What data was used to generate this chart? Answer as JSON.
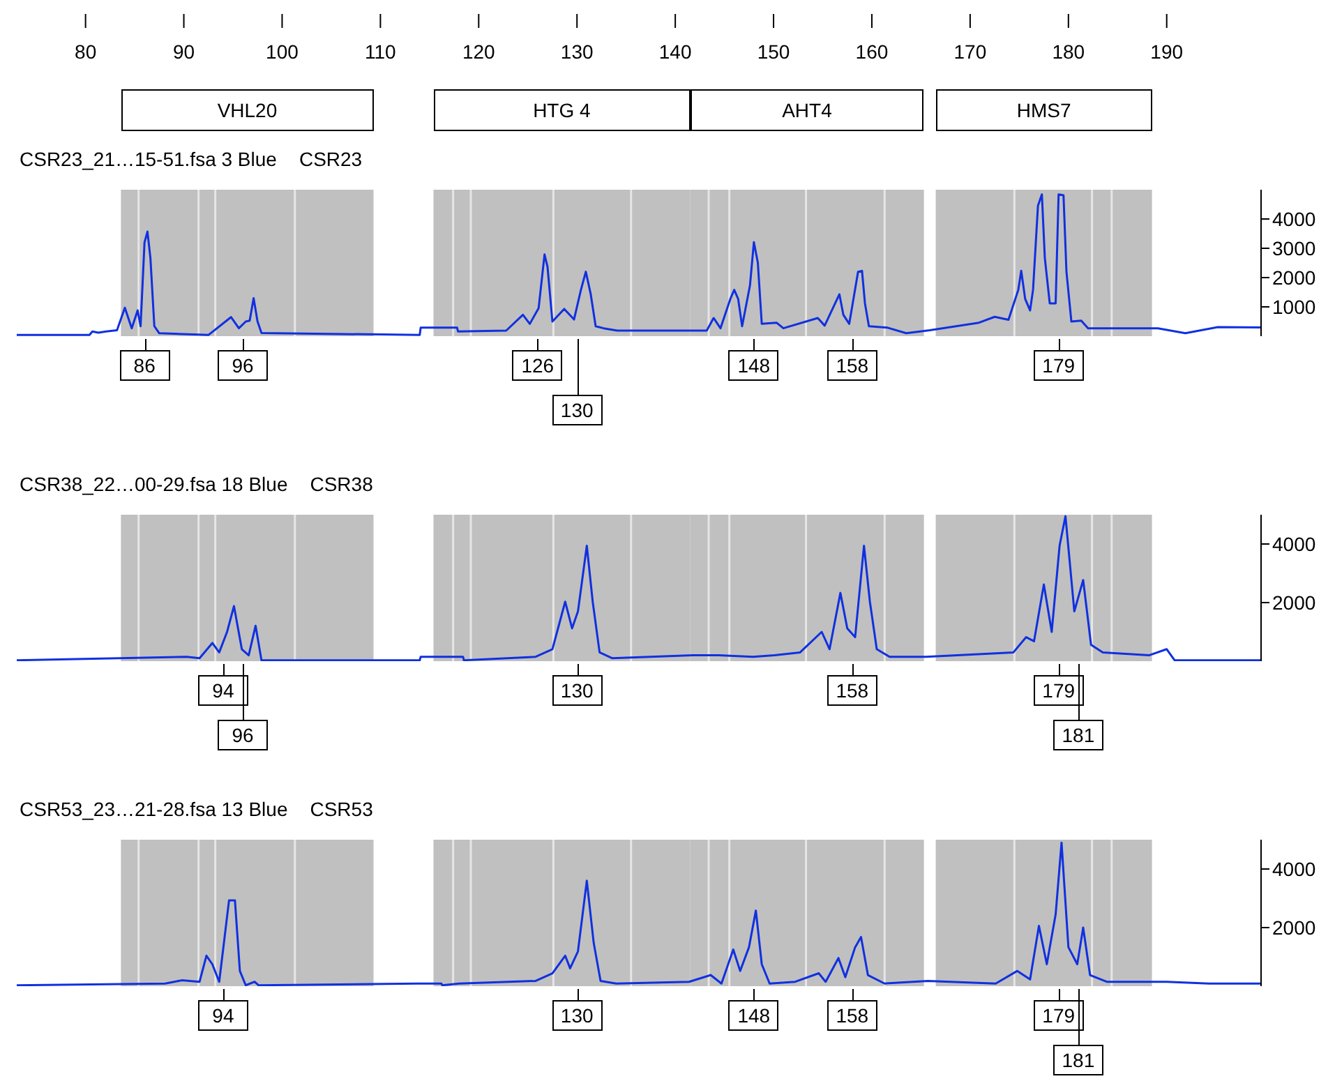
{
  "chart_data": [
    {
      "type": "line",
      "title": "CSR23_21…15-51.fsa 3 Blue",
      "subtitle": "CSR23",
      "xlim": [
        73,
        199.6
      ],
      "xticks": [
        80,
        90,
        100,
        110,
        120,
        130,
        140,
        150,
        160,
        170,
        180,
        190
      ],
      "y2lim": [
        0,
        5000
      ],
      "y2ticks": [
        1000,
        2000,
        3000,
        4000
      ],
      "series": [
        {
          "color": "#1030e0",
          "axis": "y2",
          "x": [
            73,
            80.4,
            80.7,
            81.3,
            82.1,
            83.2,
            84.0,
            84.7,
            85.3,
            85.6,
            86.0,
            86.3,
            86.6,
            87.0,
            87.5,
            92.5,
            94.8,
            95.6,
            96.3,
            96.7,
            97.1,
            97.5,
            97.9,
            114.0,
            114.1,
            117.8,
            117.9,
            122.8,
            124.5,
            125.2,
            126.1,
            126.7,
            127.0,
            127.5,
            128.7,
            129.7,
            130.4,
            130.9,
            131.4,
            131.9,
            132.7,
            134.1,
            143.2,
            143.9,
            144.6,
            145.6,
            146.0,
            146.4,
            146.8,
            147.6,
            148.0,
            148.4,
            148.8,
            150.3,
            151.0,
            154.5,
            155.2,
            156.7,
            157.1,
            157.7,
            158.6,
            159.0,
            159.3,
            159.7,
            161.6,
            163.5,
            165.9,
            170.9,
            172.5,
            173.9,
            174.9,
            175.2,
            175.6,
            176.1,
            176.4,
            176.9,
            177.3,
            177.6,
            178.1,
            178.7,
            179.0,
            179.5,
            179.8,
            180.3,
            181.3,
            182.0,
            189.1,
            191.9,
            195.2,
            199.6
          ],
          "values": [
            40,
            40,
            160,
            120,
            160,
            200,
            970,
            270,
            880,
            340,
            3200,
            3570,
            2670,
            340,
            100,
            40,
            650,
            270,
            500,
            530,
            1300,
            500,
            110,
            40,
            290,
            290,
            160,
            190,
            730,
            420,
            960,
            2790,
            2370,
            500,
            930,
            570,
            1580,
            2200,
            1430,
            340,
            270,
            190,
            190,
            620,
            270,
            1270,
            1580,
            1270,
            340,
            1730,
            3210,
            2510,
            420,
            460,
            270,
            620,
            360,
            1430,
            730,
            420,
            2200,
            2230,
            1120,
            340,
            290,
            100,
            200,
            460,
            660,
            560,
            1580,
            2230,
            1270,
            880,
            1580,
            4450,
            4840,
            2670,
            1120,
            1120,
            4840,
            4810,
            2200,
            500,
            530,
            270,
            270,
            100,
            310,
            300
          ]
        }
      ],
      "bands": [
        {
          "axis": "x",
          "from": 83.6,
          "to": 109.3,
          "color": "#c0c0c0"
        },
        {
          "axis": "x",
          "from": 115.4,
          "to": 141.5,
          "color": "#c0c0c0"
        },
        {
          "axis": "x",
          "from": 141.5,
          "to": 165.3,
          "color": "#c0c0c0"
        },
        {
          "axis": "x",
          "from": 166.5,
          "to": 188.5,
          "color": "#c0c0c0"
        }
      ],
      "ref_lines": [
        {
          "axis": "x",
          "value": 85.4,
          "color": "#e6e6e6"
        },
        {
          "axis": "x",
          "value": 91.5,
          "color": "#e6e6e6"
        },
        {
          "axis": "x",
          "value": 93.2,
          "color": "#e6e6e6"
        },
        {
          "axis": "x",
          "value": 101.3,
          "color": "#e6e6e6"
        },
        {
          "axis": "x",
          "value": 117.4,
          "color": "#e6e6e6"
        },
        {
          "axis": "x",
          "value": 119.2,
          "color": "#e6e6e6"
        },
        {
          "axis": "x",
          "value": 127.6,
          "color": "#e6e6e6"
        },
        {
          "axis": "x",
          "value": 135.5,
          "color": "#e6e6e6"
        },
        {
          "axis": "x",
          "value": 143.4,
          "color": "#e6e6e6"
        },
        {
          "axis": "x",
          "value": 145.5,
          "color": "#e6e6e6"
        },
        {
          "axis": "x",
          "value": 153.3,
          "color": "#e6e6e6"
        },
        {
          "axis": "x",
          "value": 161.3,
          "color": "#e6e6e6"
        },
        {
          "axis": "x",
          "value": 174.5,
          "color": "#e6e6e6"
        },
        {
          "axis": "x",
          "value": 182.4,
          "color": "#e6e6e6"
        },
        {
          "axis": "x",
          "value": 184.4,
          "color": "#e6e6e6"
        }
      ],
      "annotations": [
        "VHL20",
        "HTG 4",
        "AHT4",
        "HMS7",
        "86",
        "96",
        "126",
        "130",
        "148",
        "158",
        "179"
      ]
    },
    {
      "type": "line",
      "title": "CSR38_22…00-29.fsa 18 Blue",
      "subtitle": "CSR38",
      "xlim": [
        73,
        199.6
      ],
      "y2lim": [
        0,
        5000
      ],
      "y2ticks": [
        2000,
        4000
      ],
      "tick_labels": "y2",
      "series": [
        {
          "color": "#1030e0",
          "axis": "y2",
          "x": [
            73,
            90.3,
            91.6,
            92.9,
            93.6,
            94.4,
            95.1,
            95.9,
            96.6,
            97.3,
            97.9,
            114.0,
            114.1,
            118.4,
            118.5,
            125.8,
            127.5,
            128.8,
            129.5,
            130.1,
            131.0,
            131.6,
            132.3,
            133.6,
            141.8,
            144.4,
            147.9,
            150.1,
            152.7,
            154.9,
            155.7,
            156.8,
            157.5,
            158.3,
            159.2,
            159.8,
            160.5,
            161.8,
            165.5,
            174.4,
            175.7,
            176.5,
            177.5,
            178.3,
            179.1,
            179.7,
            180.6,
            181.5,
            182.3,
            183.5,
            188.2,
            190.0,
            190.8,
            199.6
          ],
          "values": [
            30,
            150,
            100,
            620,
            300,
            1000,
            1880,
            410,
            200,
            1210,
            30,
            30,
            150,
            150,
            30,
            150,
            410,
            2030,
            1120,
            1700,
            3940,
            2030,
            300,
            100,
            200,
            200,
            150,
            200,
            300,
            1000,
            410,
            2330,
            1120,
            820,
            3940,
            2030,
            410,
            150,
            150,
            300,
            820,
            680,
            2620,
            1000,
            3940,
            4950,
            1700,
            2770,
            560,
            300,
            200,
            410,
            30,
            30
          ]
        }
      ],
      "bands": [
        {
          "axis": "x",
          "from": 83.6,
          "to": 109.3,
          "color": "#c0c0c0"
        },
        {
          "axis": "x",
          "from": 115.4,
          "to": 141.5,
          "color": "#c0c0c0"
        },
        {
          "axis": "x",
          "from": 141.5,
          "to": 165.3,
          "color": "#c0c0c0"
        },
        {
          "axis": "x",
          "from": 166.5,
          "to": 188.5,
          "color": "#c0c0c0"
        }
      ],
      "ref_lines": [
        {
          "axis": "x",
          "value": 85.4,
          "color": "#e6e6e6"
        },
        {
          "axis": "x",
          "value": 91.5,
          "color": "#e6e6e6"
        },
        {
          "axis": "x",
          "value": 93.2,
          "color": "#e6e6e6"
        },
        {
          "axis": "x",
          "value": 101.3,
          "color": "#e6e6e6"
        },
        {
          "axis": "x",
          "value": 117.4,
          "color": "#e6e6e6"
        },
        {
          "axis": "x",
          "value": 119.2,
          "color": "#e6e6e6"
        },
        {
          "axis": "x",
          "value": 127.6,
          "color": "#e6e6e6"
        },
        {
          "axis": "x",
          "value": 135.5,
          "color": "#e6e6e6"
        },
        {
          "axis": "x",
          "value": 143.4,
          "color": "#e6e6e6"
        },
        {
          "axis": "x",
          "value": 145.5,
          "color": "#e6e6e6"
        },
        {
          "axis": "x",
          "value": 153.3,
          "color": "#e6e6e6"
        },
        {
          "axis": "x",
          "value": 161.3,
          "color": "#e6e6e6"
        },
        {
          "axis": "x",
          "value": 174.5,
          "color": "#e6e6e6"
        },
        {
          "axis": "x",
          "value": 182.4,
          "color": "#e6e6e6"
        },
        {
          "axis": "x",
          "value": 184.4,
          "color": "#e6e6e6"
        }
      ],
      "annotations": [
        "94",
        "96",
        "130",
        "158",
        "179",
        "181"
      ]
    },
    {
      "type": "line",
      "title": "CSR53_23…21-28.fsa 13 Blue",
      "subtitle": "CSR53",
      "xlim": [
        73,
        199.6
      ],
      "y2lim": [
        0,
        5000
      ],
      "y2ticks": [
        2000,
        4000
      ],
      "tick_labels": "y2",
      "series": [
        {
          "color": "#1030e0",
          "axis": "y2",
          "x": [
            73,
            88.1,
            89.8,
            91.6,
            92.3,
            92.9,
            93.6,
            94.6,
            95.2,
            95.7,
            96.3,
            97.2,
            97.6,
            113.7,
            116.2,
            116.3,
            118.0,
            125.8,
            127.5,
            128.8,
            129.3,
            130.1,
            131.0,
            131.7,
            132.4,
            134.0,
            141.4,
            143.6,
            144.7,
            145.9,
            146.6,
            147.5,
            148.2,
            148.8,
            149.6,
            152.2,
            154.6,
            155.3,
            156.6,
            157.3,
            158.3,
            158.9,
            159.6,
            161.3,
            165.7,
            172.6,
            174.8,
            176.1,
            177.0,
            177.8,
            178.7,
            179.3,
            180.0,
            180.9,
            181.5,
            182.2,
            183.9,
            190.0,
            194.3,
            196.9,
            199.6
          ],
          "values": [
            30,
            90,
            200,
            150,
            1040,
            750,
            150,
            2930,
            2930,
            520,
            30,
            150,
            30,
            90,
            90,
            30,
            90,
            180,
            440,
            1040,
            610,
            1190,
            3600,
            1480,
            180,
            90,
            150,
            380,
            90,
            1250,
            520,
            1330,
            2580,
            750,
            90,
            150,
            440,
            150,
            960,
            310,
            1330,
            1680,
            380,
            90,
            180,
            90,
            520,
            230,
            2060,
            750,
            2450,
            4900,
            1330,
            750,
            2000,
            380,
            150,
            150,
            90,
            90,
            90
          ]
        }
      ],
      "bands": [
        {
          "axis": "x",
          "from": 83.6,
          "to": 109.3,
          "color": "#c0c0c0"
        },
        {
          "axis": "x",
          "from": 115.4,
          "to": 141.5,
          "color": "#c0c0c0"
        },
        {
          "axis": "x",
          "from": 141.5,
          "to": 165.3,
          "color": "#c0c0c0"
        },
        {
          "axis": "x",
          "from": 166.5,
          "to": 188.5,
          "color": "#c0c0c0"
        }
      ],
      "ref_lines": [
        {
          "axis": "x",
          "value": 85.4,
          "color": "#e6e6e6"
        },
        {
          "axis": "x",
          "value": 91.5,
          "color": "#e6e6e6"
        },
        {
          "axis": "x",
          "value": 93.2,
          "color": "#e6e6e6"
        },
        {
          "axis": "x",
          "value": 101.3,
          "color": "#e6e6e6"
        },
        {
          "axis": "x",
          "value": 117.4,
          "color": "#e6e6e6"
        },
        {
          "axis": "x",
          "value": 119.2,
          "color": "#e6e6e6"
        },
        {
          "axis": "x",
          "value": 127.6,
          "color": "#e6e6e6"
        },
        {
          "axis": "x",
          "value": 135.5,
          "color": "#e6e6e6"
        },
        {
          "axis": "x",
          "value": 143.4,
          "color": "#e6e6e6"
        },
        {
          "axis": "x",
          "value": 145.5,
          "color": "#e6e6e6"
        },
        {
          "axis": "x",
          "value": 153.3,
          "color": "#e6e6e6"
        },
        {
          "axis": "x",
          "value": 161.3,
          "color": "#e6e6e6"
        },
        {
          "axis": "x",
          "value": 174.5,
          "color": "#e6e6e6"
        },
        {
          "axis": "x",
          "value": 182.4,
          "color": "#e6e6e6"
        },
        {
          "axis": "x",
          "value": 184.4,
          "color": "#e6e6e6"
        }
      ],
      "annotations": [
        "94",
        "130",
        "148",
        "158",
        "179",
        "181"
      ]
    }
  ]
}
